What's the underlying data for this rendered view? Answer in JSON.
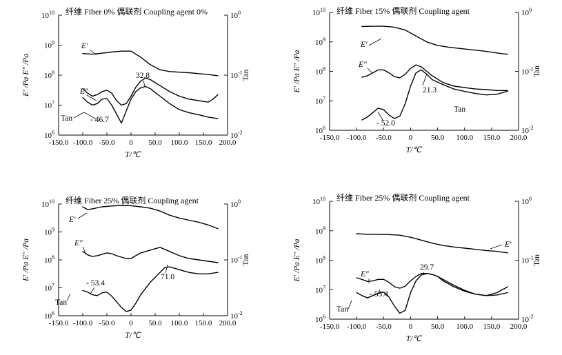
{
  "chart_data": [
    {
      "type": "line",
      "title": "纤维 Fiber 0%    偶联剂 Coupling agent 0%",
      "xlabel": "T/℃",
      "ylabel_left": "E′ /Pa  E″ /Pa",
      "ylabel_right": "Tan",
      "xlim": [
        -150,
        200
      ],
      "x_ticks": [
        "-150.0",
        "-100.0",
        "-50.0",
        "0",
        "50.0",
        "100.0",
        "150.0",
        "200.0"
      ],
      "y_left_log_range": [
        6,
        10
      ],
      "y_left_ticks": [
        "10⁶",
        "10⁷",
        "10⁸",
        "10⁹",
        "10¹⁰"
      ],
      "y_right_log_range": [
        -2,
        0
      ],
      "y_right_ticks": [
        "10⁻²",
        "10⁻¹",
        "10⁰"
      ],
      "series": [
        {
          "name": "E′",
          "x": [
            -100,
            -80,
            -60,
            -40,
            -20,
            0,
            20,
            40,
            60,
            80,
            100,
            120,
            140,
            160,
            180
          ],
          "log_values": [
            8.72,
            8.7,
            8.73,
            8.77,
            8.8,
            8.8,
            8.6,
            8.35,
            8.18,
            8.12,
            8.1,
            8.08,
            8.05,
            8.02,
            7.98
          ]
        },
        {
          "name": "E″",
          "x": [
            -100,
            -90,
            -80,
            -70,
            -60,
            -50,
            -40,
            -30,
            -20,
            -10,
            0,
            10,
            20,
            30,
            40,
            50,
            60,
            80,
            100,
            120,
            140,
            160,
            170,
            180
          ],
          "log_values": [
            7.55,
            7.4,
            7.3,
            7.35,
            7.45,
            7.5,
            7.4,
            7.15,
            7.0,
            7.05,
            7.3,
            7.6,
            7.8,
            7.9,
            7.85,
            7.75,
            7.65,
            7.45,
            7.3,
            7.2,
            7.15,
            7.1,
            7.2,
            7.35
          ]
        },
        {
          "name": "Tan",
          "x": [
            -100,
            -90,
            -80,
            -70,
            -60,
            -50,
            -40,
            -30,
            -20,
            -10,
            0,
            10,
            20,
            30,
            40,
            50,
            60,
            80,
            100,
            120,
            140,
            160,
            180
          ],
          "log_values": [
            7.25,
            7.1,
            7.0,
            7.05,
            7.2,
            7.22,
            7.0,
            6.7,
            6.4,
            6.8,
            7.2,
            7.45,
            7.58,
            7.62,
            7.55,
            7.42,
            7.3,
            7.05,
            6.85,
            6.75,
            6.68,
            6.6,
            6.55
          ]
        }
      ],
      "labels": {
        "e_prime": "E′",
        "e_double": "E″",
        "tan": "Tan"
      },
      "annotations": [
        "32.8",
        "- 46.7"
      ]
    },
    {
      "type": "line",
      "title": "纤维 Fiber 15%    偶联剂 Coupling agent",
      "xlabel": "T/℃",
      "ylabel_left": "E′ /Pa  E″ /Pa",
      "ylabel_right": "Tan",
      "xlim": [
        -150,
        200
      ],
      "x_ticks": [
        "-150.0",
        "-100.0",
        "-50.0",
        "0",
        "50.0",
        "100.0",
        "150.0",
        "200.0"
      ],
      "y_left_log_range": [
        6,
        10
      ],
      "y_left_ticks": [
        "10⁶",
        "10⁷",
        "10⁸",
        "10⁹",
        "10¹⁰"
      ],
      "y_right_log_range": [
        -2,
        0
      ],
      "y_right_ticks": [
        "10⁻²",
        "10⁻¹",
        "10⁰"
      ],
      "series": [
        {
          "name": "E′",
          "x": [
            -90,
            -70,
            -50,
            -30,
            -10,
            10,
            30,
            50,
            70,
            90,
            110,
            130,
            150,
            170,
            180
          ],
          "log_values": [
            9.52,
            9.53,
            9.53,
            9.5,
            9.4,
            9.2,
            9.0,
            8.88,
            8.82,
            8.78,
            8.74,
            8.7,
            8.65,
            8.6,
            8.58
          ]
        },
        {
          "name": "E″",
          "x": [
            -90,
            -80,
            -70,
            -60,
            -50,
            -40,
            -30,
            -20,
            -10,
            0,
            10,
            20,
            30,
            40,
            60,
            80,
            100,
            120,
            140,
            160,
            180
          ],
          "log_values": [
            7.8,
            7.85,
            7.95,
            8.05,
            8.05,
            7.95,
            7.82,
            7.78,
            7.9,
            8.1,
            8.22,
            8.15,
            8.0,
            7.85,
            7.62,
            7.5,
            7.45,
            7.4,
            7.38,
            7.35,
            7.35
          ]
        },
        {
          "name": "Tan",
          "x": [
            -90,
            -80,
            -70,
            -60,
            -50,
            -40,
            -30,
            -20,
            -10,
            0,
            10,
            20,
            30,
            40,
            60,
            80,
            100,
            120,
            140,
            160,
            180
          ],
          "log_values": [
            6.35,
            6.45,
            6.6,
            6.75,
            6.7,
            6.52,
            6.4,
            6.48,
            6.9,
            7.5,
            7.95,
            8.05,
            7.9,
            7.72,
            7.55,
            7.4,
            7.32,
            7.25,
            7.2,
            7.22,
            7.33
          ]
        }
      ],
      "labels": {
        "e_prime": "E′",
        "e_double": "E″",
        "tan": "Tan"
      },
      "annotations": [
        "21.3",
        "- 52.0"
      ]
    },
    {
      "type": "line",
      "title": "纤维 Fiber 25%    偶联剂 Coupling agent",
      "xlabel": "T/℃",
      "ylabel_left": "E′ /Pa  E″ /Pa",
      "ylabel_right": "Tan",
      "xlim": [
        -150,
        200
      ],
      "x_ticks": [
        "-150.0",
        "-100.0",
        "-50.0",
        "0",
        "50.0",
        "100.0",
        "150.0",
        "200.0"
      ],
      "y_left_log_range": [
        6,
        10
      ],
      "y_left_ticks": [
        "10⁶",
        "10⁷",
        "10⁸",
        "10⁹",
        "10¹⁰"
      ],
      "y_right_log_range": [
        -2,
        0
      ],
      "y_right_ticks": [
        "10⁻²",
        "10⁻¹",
        "10⁰"
      ],
      "series": [
        {
          "name": "E′",
          "x": [
            -100,
            -90,
            -80,
            -60,
            -40,
            -20,
            0,
            20,
            40,
            60,
            80,
            100,
            120,
            140,
            160,
            180
          ],
          "log_values": [
            9.9,
            9.8,
            9.83,
            9.9,
            9.93,
            9.95,
            9.94,
            9.9,
            9.85,
            9.75,
            9.6,
            9.5,
            9.42,
            9.35,
            9.25,
            9.12
          ]
        },
        {
          "name": "E″",
          "x": [
            -100,
            -90,
            -80,
            -70,
            -60,
            -50,
            -40,
            -30,
            -20,
            -10,
            0,
            10,
            20,
            40,
            60,
            80,
            100,
            120,
            140,
            160,
            180
          ],
          "log_values": [
            8.3,
            8.18,
            8.12,
            8.15,
            8.2,
            8.25,
            8.22,
            8.15,
            8.1,
            8.05,
            8.05,
            8.15,
            8.25,
            8.35,
            8.45,
            8.3,
            8.15,
            8.05,
            8.0,
            7.95,
            7.9
          ]
        },
        {
          "name": "Tan",
          "x": [
            -100,
            -90,
            -80,
            -70,
            -60,
            -50,
            -40,
            -30,
            -20,
            -10,
            0,
            10,
            20,
            40,
            60,
            70,
            80,
            100,
            120,
            140,
            160,
            180
          ],
          "log_values": [
            6.9,
            6.85,
            6.75,
            6.72,
            6.82,
            6.85,
            6.7,
            6.5,
            6.3,
            6.15,
            6.2,
            6.45,
            6.75,
            7.2,
            7.55,
            7.72,
            7.75,
            7.65,
            7.55,
            7.5,
            7.5,
            7.55
          ]
        }
      ],
      "labels": {
        "e_prime": "E′",
        "e_double": "E″",
        "tan": "Tan"
      },
      "annotations": [
        "- 53.4",
        "71.0"
      ]
    },
    {
      "type": "line",
      "title": "纤维 Fiber 25%    偶联剂 Coupling agent",
      "xlabel": "T/℃",
      "ylabel_left": "E′ /Pa  E″ /Pa",
      "ylabel_right": "Tan",
      "xlim": [
        -150,
        200
      ],
      "x_ticks": [
        "-150.0",
        "-100.0",
        "-50.0",
        "0",
        "50.0",
        "100.0",
        "150.0",
        "200.0"
      ],
      "y_left_log_range": [
        6,
        10
      ],
      "y_left_ticks": [
        "10⁶",
        "10⁷",
        "10⁸",
        "10⁹",
        "10¹⁰"
      ],
      "y_right_log_range": [
        -2,
        0
      ],
      "y_right_ticks": [
        "10⁻²",
        "10⁻¹",
        "10⁰"
      ],
      "series": [
        {
          "name": "E′",
          "x": [
            -100,
            -80,
            -60,
            -40,
            -20,
            0,
            20,
            40,
            60,
            80,
            100,
            120,
            140,
            160,
            180
          ],
          "log_values": [
            8.9,
            8.88,
            8.88,
            8.87,
            8.85,
            8.78,
            8.68,
            8.58,
            8.5,
            8.45,
            8.41,
            8.37,
            8.33,
            8.3,
            8.25
          ]
        },
        {
          "name": "E″",
          "x": [
            -100,
            -90,
            -80,
            -70,
            -60,
            -50,
            -40,
            -30,
            -20,
            -10,
            0,
            10,
            20,
            30,
            40,
            50,
            60,
            80,
            100,
            120,
            140,
            160,
            180
          ],
          "log_values": [
            7.4,
            7.35,
            7.28,
            7.3,
            7.35,
            7.35,
            7.25,
            7.1,
            7.05,
            7.12,
            7.3,
            7.45,
            7.55,
            7.55,
            7.52,
            7.45,
            7.35,
            7.15,
            6.98,
            6.85,
            6.8,
            6.82,
            6.9
          ]
        },
        {
          "name": "Tan",
          "x": [
            -100,
            -90,
            -80,
            -70,
            -60,
            -50,
            -40,
            -30,
            -20,
            -10,
            0,
            10,
            20,
            30,
            40,
            50,
            60,
            80,
            100,
            120,
            140,
            160,
            180
          ],
          "log_values": [
            6.9,
            6.8,
            6.72,
            6.8,
            6.88,
            6.92,
            6.75,
            6.45,
            6.2,
            6.3,
            6.9,
            7.3,
            7.5,
            7.55,
            7.52,
            7.45,
            7.3,
            7.1,
            6.95,
            6.85,
            6.8,
            6.9,
            7.1
          ]
        }
      ],
      "labels": {
        "e_prime": "E′",
        "e_double": "E″",
        "tan": "Tan"
      },
      "annotations": [
        "29.7",
        "- 55.4"
      ]
    }
  ]
}
